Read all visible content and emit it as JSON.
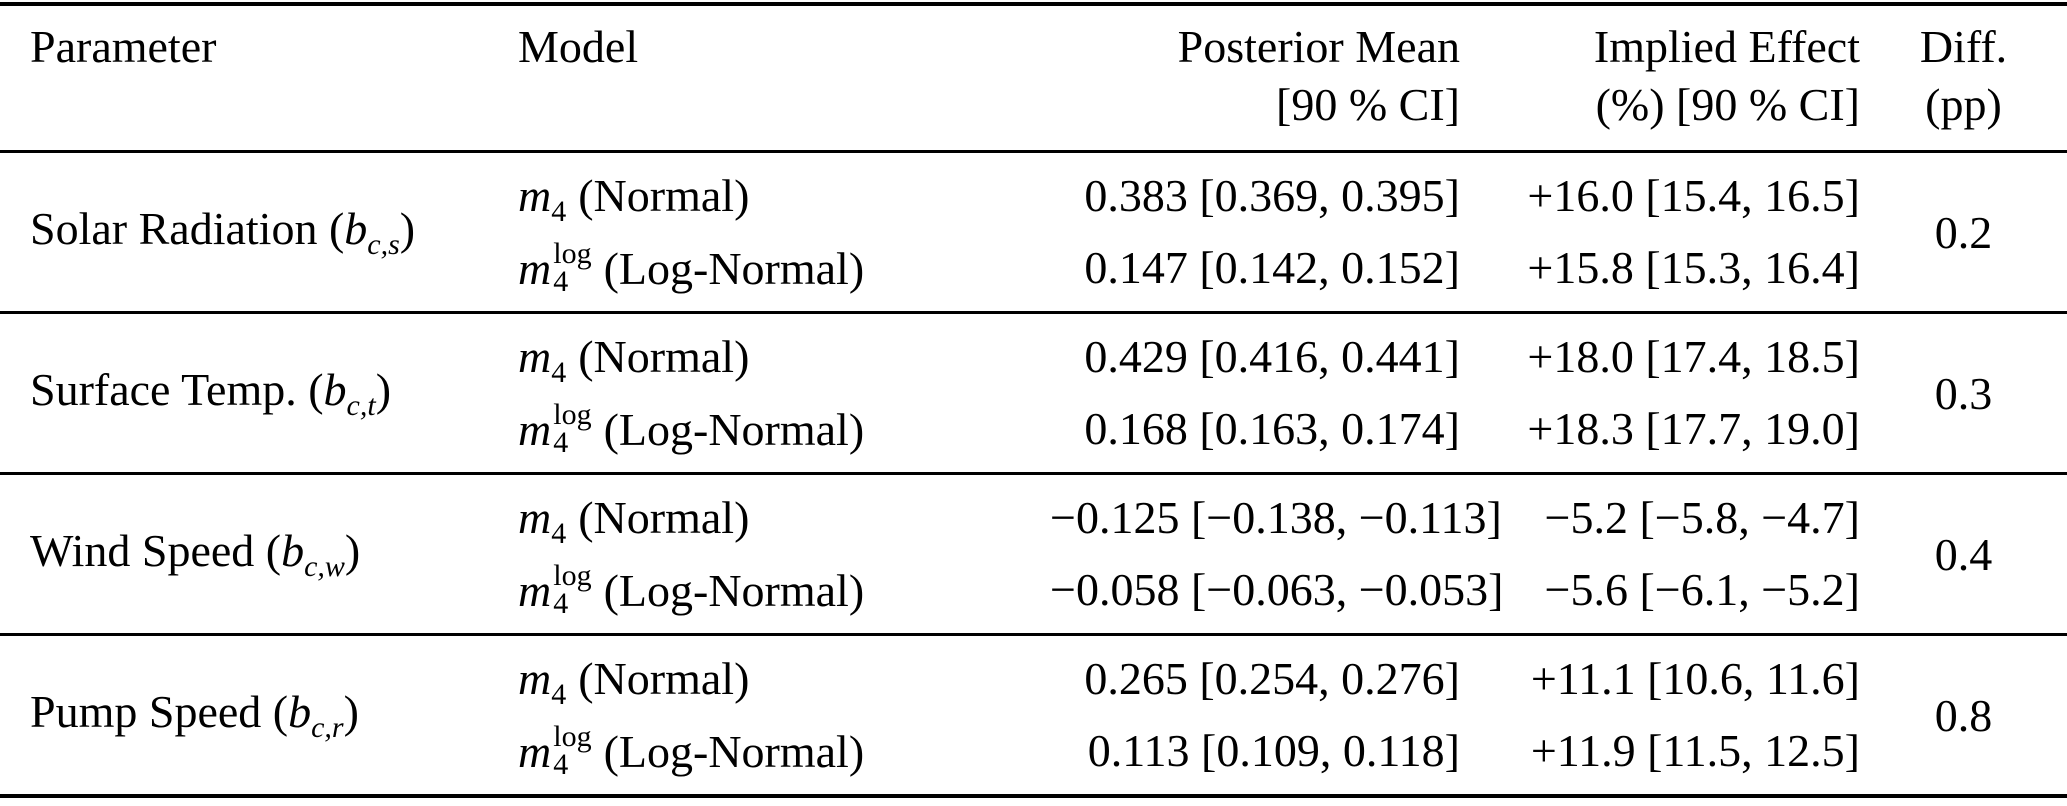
{
  "table": {
    "header": {
      "parameter": "Parameter",
      "model": "Model",
      "posterior_line1": "Posterior Mean",
      "posterior_line2": "[90 % CI]",
      "effect_line1": "Implied Effect",
      "effect_line2": "(%) [90 % CI]",
      "diff_line1": "Diff.",
      "diff_line2": "(pp)"
    },
    "rows": [
      {
        "param_prefix": "Solar Radiation (",
        "param_var": "b",
        "param_sub": "c,s",
        "param_suffix": ")",
        "diff": "0.2",
        "model1": {
          "var": "m",
          "sub": "4",
          "label": "(Normal)",
          "posterior": "0.383 [0.369, 0.395]",
          "effect": "+16.0 [15.4, 16.5]"
        },
        "model2": {
          "var": "m",
          "sub": "4",
          "sup": "log",
          "label": "(Log-Normal)",
          "posterior": "0.147 [0.142, 0.152]",
          "effect": "+15.8 [15.3, 16.4]"
        }
      },
      {
        "param_prefix": "Surface Temp. (",
        "param_var": "b",
        "param_sub": "c,t",
        "param_suffix": ")",
        "diff": "0.3",
        "model1": {
          "var": "m",
          "sub": "4",
          "label": "(Normal)",
          "posterior": "0.429 [0.416, 0.441]",
          "effect": "+18.0 [17.4, 18.5]"
        },
        "model2": {
          "var": "m",
          "sub": "4",
          "sup": "log",
          "label": "(Log-Normal)",
          "posterior": "0.168 [0.163, 0.174]",
          "effect": "+18.3 [17.7, 19.0]"
        }
      },
      {
        "param_prefix": "Wind Speed (",
        "param_var": "b",
        "param_sub": "c,w",
        "param_suffix": ")",
        "diff": "0.4",
        "model1": {
          "var": "m",
          "sub": "4",
          "label": "(Normal)",
          "posterior": "−0.125 [−0.138, −0.113]",
          "effect": "−5.2 [−5.8, −4.7]"
        },
        "model2": {
          "var": "m",
          "sub": "4",
          "sup": "log",
          "label": "(Log-Normal)",
          "posterior": "−0.058 [−0.063, −0.053]",
          "effect": "−5.6 [−6.1, −5.2]"
        }
      },
      {
        "param_prefix": "Pump Speed (",
        "param_var": "b",
        "param_sub": "c,r",
        "param_suffix": ")",
        "diff": "0.8",
        "model1": {
          "var": "m",
          "sub": "4",
          "label": "(Normal)",
          "posterior": "0.265 [0.254, 0.276]",
          "effect": "+11.1 [10.6, 11.6]"
        },
        "model2": {
          "var": "m",
          "sub": "4",
          "sup": "log",
          "label": "(Log-Normal)",
          "posterior": "0.113 [0.109, 0.118]",
          "effect": "+11.9 [11.5, 12.5]"
        }
      }
    ]
  }
}
